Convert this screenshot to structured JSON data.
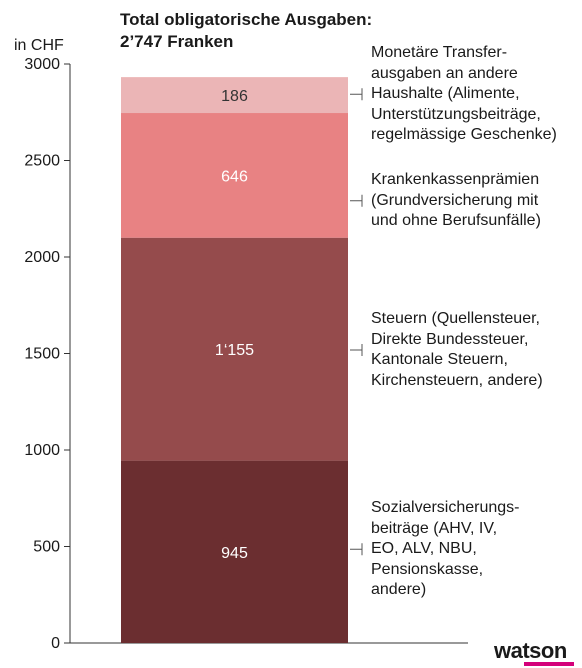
{
  "chart_data": {
    "type": "bar",
    "stacked": true,
    "title": "Total obligatorische Ausgaben:",
    "subtitle": "2’747 Franken",
    "ylabel": "in CHF",
    "ylim": [
      0,
      3000
    ],
    "yticks": [
      0,
      500,
      1000,
      1500,
      2000,
      2500,
      3000
    ],
    "series": [
      {
        "name": "Sozialversicherungsbeiträge",
        "value": 945,
        "label": "945",
        "color": "#6b2e30",
        "label_color": "#ffffff",
        "annotation": [
          "Sozialversicherungs-",
          "beiträge (AHV, IV,",
          "EO, ALV, NBU,",
          "Pensionskasse,",
          "andere)"
        ]
      },
      {
        "name": "Steuern",
        "value": 1155,
        "label": "1‘155",
        "color": "#954b4c",
        "label_color": "#ffffff",
        "annotation": [
          "Steuern (Quellensteuer,",
          "Direkte Bundessteuer,",
          "Kantonale Steuern,",
          "Kirchensteuern, andere)"
        ]
      },
      {
        "name": "Krankenkassenprämien",
        "value": 646,
        "label": "646",
        "color": "#e88283",
        "label_color": "#ffffff",
        "annotation": [
          "Krankenkassenprämien",
          "(Grundversicherung mit",
          "und ohne Berufsunfälle)"
        ]
      },
      {
        "name": "Monetäre Transferausgaben",
        "value": 186,
        "label": "186",
        "color": "#ebb5b6",
        "label_color": "#333333",
        "annotation": [
          "Monetäre Transfer-",
          "ausgaben an andere",
          "Haushalte (Alimente,",
          "Unterstützungsbeiträ­ge,",
          "regelmässige Geschenke)"
        ]
      }
    ]
  },
  "branding": {
    "logo": "watson",
    "accent": "#d4007a"
  }
}
